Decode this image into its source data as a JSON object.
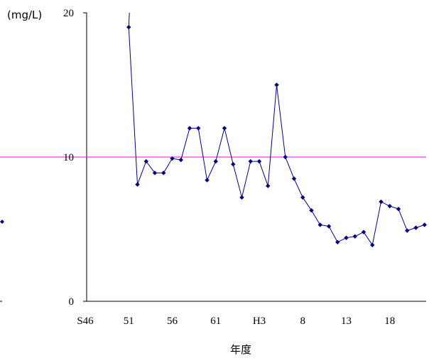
{
  "chart_data": {
    "type": "line",
    "xlabel": "年度",
    "ylabel": "(mg/L)",
    "ylim": [
      0,
      20
    ],
    "yticks": [
      0,
      10,
      20
    ],
    "x_tick_labels": [
      "S46",
      "51",
      "56",
      "61",
      "H3",
      "8",
      "13",
      "18"
    ],
    "grid": false,
    "reference_line": {
      "value": 10,
      "color": "#ff00ff"
    },
    "series": [
      {
        "color": "#000080",
        "points": [
          {
            "year": 51,
            "value": 19.0
          },
          {
            "year": 52,
            "value": 8.1
          },
          {
            "year": 53,
            "value": 9.7
          },
          {
            "year": 54,
            "value": 8.9
          },
          {
            "year": 55,
            "value": 8.9
          },
          {
            "year": 56,
            "value": 9.9
          },
          {
            "year": 57,
            "value": 9.8
          },
          {
            "year": 58,
            "value": 12.0
          },
          {
            "year": 59,
            "value": 12.0
          },
          {
            "year": 60,
            "value": 8.4
          },
          {
            "year": 61,
            "value": 9.7
          },
          {
            "year": 62,
            "value": 12.0
          },
          {
            "year": 63,
            "value": 9.5
          },
          {
            "year": 64,
            "value": 7.2
          },
          {
            "year": 65,
            "value": 9.7
          },
          {
            "year": 66,
            "value": 9.7
          },
          {
            "year": 67,
            "value": 8.0
          },
          {
            "year": 68,
            "value": 15.0
          },
          {
            "year": 69,
            "value": 10.0
          },
          {
            "year": 70,
            "value": 8.5
          },
          {
            "year": 71,
            "value": 7.2
          },
          {
            "year": 72,
            "value": 6.3
          },
          {
            "year": 73,
            "value": 5.3
          },
          {
            "year": 74,
            "value": 5.2
          },
          {
            "year": 75,
            "value": 4.1
          },
          {
            "year": 76,
            "value": 4.4
          },
          {
            "year": 77,
            "value": 4.5
          },
          {
            "year": 78,
            "value": 4.8
          },
          {
            "year": 79,
            "value": 3.9
          },
          {
            "year": 80,
            "value": 6.9
          },
          {
            "year": 81,
            "value": 6.6
          },
          {
            "year": 82,
            "value": 6.4
          },
          {
            "year": 83,
            "value": 4.9
          },
          {
            "year": 84,
            "value": 5.1
          },
          {
            "year": 85,
            "value": 5.3
          }
        ]
      }
    ]
  }
}
